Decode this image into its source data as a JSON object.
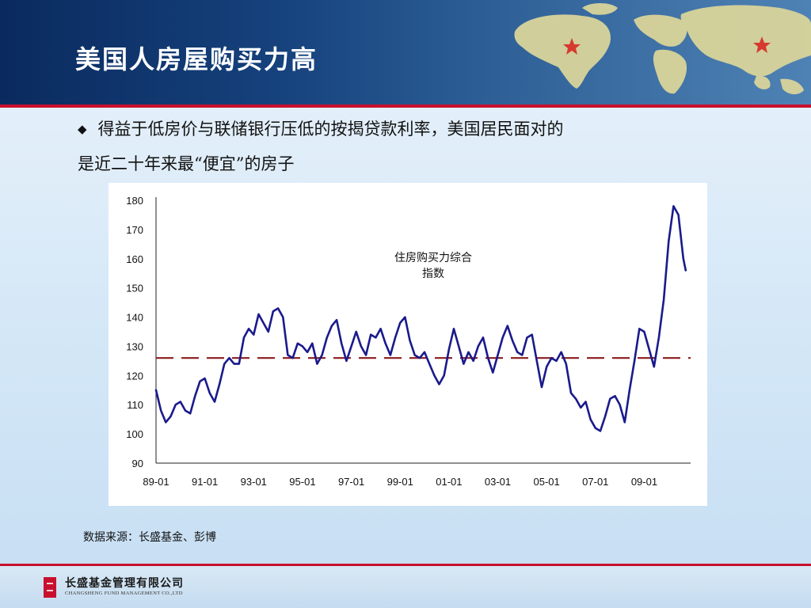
{
  "header": {
    "title": "美国人房屋购买力高"
  },
  "bullet": {
    "line1": "得益于低房价与联储银行压低的按揭贷款利率，美国居民面对的",
    "line2": "是近二十年来最“便宜”的房子"
  },
  "chart_data": {
    "type": "line",
    "annotation_line1": "住房购买力综合",
    "annotation_line2": "指数",
    "ylim": [
      90,
      180
    ],
    "yticks": [
      90,
      100,
      110,
      120,
      130,
      140,
      150,
      160,
      170,
      180
    ],
    "xlim": [
      1989.0,
      2010.9
    ],
    "xticks": [
      {
        "label": "89-01",
        "x": 1989.0
      },
      {
        "label": "91-01",
        "x": 1991.0
      },
      {
        "label": "93-01",
        "x": 1993.0
      },
      {
        "label": "95-01",
        "x": 1995.0
      },
      {
        "label": "97-01",
        "x": 1997.0
      },
      {
        "label": "99-01",
        "x": 1999.0
      },
      {
        "label": "01-01",
        "x": 2001.0
      },
      {
        "label": "03-01",
        "x": 2003.0
      },
      {
        "label": "05-01",
        "x": 2005.0
      },
      {
        "label": "07-01",
        "x": 2007.0
      },
      {
        "label": "09-01",
        "x": 2009.0
      }
    ],
    "reference_line": 126,
    "colors": {
      "series": "#1a1a8c",
      "reference": "#8b1a1a",
      "axis": "#222222"
    },
    "grid": false,
    "series": [
      {
        "x": [
          1989.0,
          1989.2,
          1989.4,
          1989.6,
          1989.8,
          1990.0,
          1990.2,
          1990.4,
          1990.6,
          1990.8,
          1991.0,
          1991.2,
          1991.4,
          1991.6,
          1991.8,
          1992.0,
          1992.2,
          1992.4,
          1992.6,
          1992.8,
          1993.0,
          1993.2,
          1993.4,
          1993.6,
          1993.8,
          1994.0,
          1994.2,
          1994.4,
          1994.6,
          1994.8,
          1995.0,
          1995.2,
          1995.4,
          1995.6,
          1995.8,
          1996.0,
          1996.2,
          1996.4,
          1996.6,
          1996.8,
          1997.0,
          1997.2,
          1997.4,
          1997.6,
          1997.8,
          1998.0,
          1998.2,
          1998.4,
          1998.6,
          1998.8,
          1999.0,
          1999.2,
          1999.4,
          1999.6,
          1999.8,
          2000.0,
          2000.2,
          2000.4,
          2000.6,
          2000.8,
          2001.0,
          2001.2,
          2001.4,
          2001.6,
          2001.8,
          2002.0,
          2002.2,
          2002.4,
          2002.6,
          2002.8,
          2003.0,
          2003.2,
          2003.4,
          2003.6,
          2003.8,
          2004.0,
          2004.2,
          2004.4,
          2004.6,
          2004.8,
          2005.0,
          2005.2,
          2005.4,
          2005.6,
          2005.8,
          2006.0,
          2006.2,
          2006.4,
          2006.6,
          2006.8,
          2007.0,
          2007.2,
          2007.4,
          2007.6,
          2007.8,
          2008.0,
          2008.2,
          2008.4,
          2008.6,
          2008.8,
          2009.0,
          2009.2,
          2009.4,
          2009.6,
          2009.8,
          2010.0,
          2010.2,
          2010.4,
          2010.6,
          2010.7
        ],
        "values": [
          115,
          108,
          104,
          106,
          110,
          111,
          108,
          107,
          113,
          118,
          119,
          114,
          111,
          117,
          124,
          126,
          124,
          124,
          133,
          136,
          134,
          141,
          138,
          135,
          142,
          143,
          140,
          127,
          126,
          131,
          130,
          128,
          131,
          124,
          127,
          133,
          137,
          139,
          131,
          125,
          130,
          135,
          130,
          127,
          134,
          133,
          136,
          131,
          127,
          133,
          138,
          140,
          132,
          127,
          126,
          128,
          124,
          120,
          117,
          120,
          129,
          136,
          130,
          124,
          128,
          125,
          130,
          133,
          126,
          121,
          127,
          133,
          137,
          132,
          128,
          127,
          133,
          134,
          125,
          116,
          123,
          126,
          125,
          128,
          124,
          114,
          112,
          109,
          111,
          105,
          102,
          101,
          106,
          112,
          113,
          110,
          104,
          115,
          125,
          136,
          135,
          129,
          123,
          133,
          146,
          166,
          178,
          175,
          160,
          156
        ]
      }
    ]
  },
  "source": {
    "text": "数据来源：长盛基金、彭博"
  },
  "footer": {
    "company_cn": "长盛基金管理有限公司",
    "company_en": "CHANGSHENG FUND MANAGEMENT CO.,LTD"
  }
}
